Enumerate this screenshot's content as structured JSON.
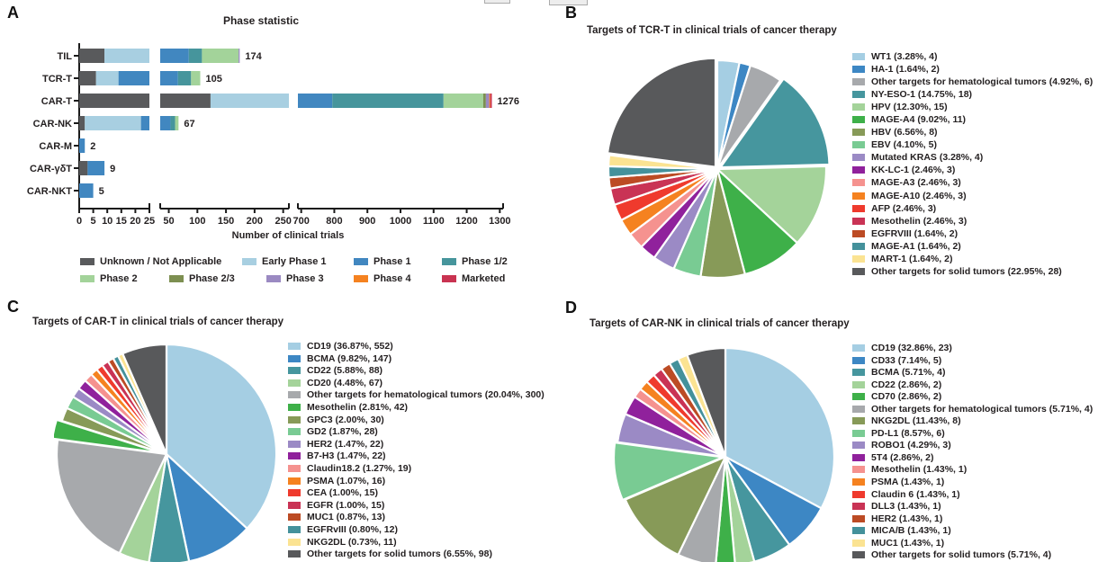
{
  "panels": {
    "a": {
      "letter": "A"
    },
    "b": {
      "letter": "B"
    },
    "c": {
      "letter": "C"
    },
    "d": {
      "letter": "D"
    }
  },
  "chart_data": [
    {
      "type": "bar",
      "panel": "A",
      "orientation": "horizontal_stacked",
      "title": "Phase statistic",
      "xlabel": "Number of clinical trials",
      "categories": [
        "TIL",
        "TCR-T",
        "CAR-T",
        "CAR-NK",
        "CAR-M",
        "CAR-γδT",
        "CAR-NKT"
      ],
      "totals": [
        174,
        105,
        1276,
        67,
        2,
        9,
        5
      ],
      "axis_segments": [
        {
          "range": [
            0,
            25
          ],
          "ticks": [
            0,
            5,
            10,
            15,
            20,
            25
          ]
        },
        {
          "range": [
            35,
            260
          ],
          "ticks": [
            50,
            100,
            150,
            200,
            250
          ]
        },
        {
          "range": [
            690,
            1310
          ],
          "ticks": [
            700,
            800,
            900,
            1000,
            1100,
            1200,
            1300
          ]
        }
      ],
      "series": [
        {
          "name": "Unknown / Not Applicable",
          "color": "#595a5c",
          "values": [
            9,
            6,
            123,
            2,
            0,
            3,
            0
          ]
        },
        {
          "name": "Early Phase 1",
          "color": "#a8cfe1",
          "values": [
            26,
            8,
            157,
            20,
            0,
            0,
            0
          ]
        },
        {
          "name": "Phase 1",
          "color": "#4187c0",
          "values": [
            50,
            52,
            514,
            31,
            2,
            6,
            5
          ]
        },
        {
          "name": "Phase 1/2",
          "color": "#46959c",
          "values": [
            23,
            23,
            336,
            8,
            0,
            0,
            0
          ]
        },
        {
          "name": "Phase 2",
          "color": "#a3d39a",
          "values": [
            64,
            16,
            120,
            6,
            0,
            0,
            0
          ]
        },
        {
          "name": "Phase 2/3",
          "color": "#7d8f51",
          "values": [
            0,
            0,
            8,
            0,
            0,
            0,
            0
          ]
        },
        {
          "name": "Phase 3",
          "color": "#9b8ac2",
          "values": [
            2,
            0,
            10,
            0,
            0,
            0,
            0
          ]
        },
        {
          "name": "Phase 4",
          "color": "#f58220",
          "values": [
            0,
            0,
            3,
            0,
            0,
            0,
            0
          ]
        },
        {
          "name": "Marketed",
          "color": "#c93351",
          "values": [
            0,
            0,
            5,
            0,
            0,
            0,
            0
          ]
        }
      ]
    },
    {
      "type": "pie",
      "panel": "B",
      "title": "Targets of TCR-T in clinical trials of cancer therapy",
      "legend_position": "right",
      "slices": [
        {
          "label": "WT1",
          "pct": "3.28%",
          "count": 4,
          "value": 4,
          "color": "#a5cee3"
        },
        {
          "label": "HA-1",
          "pct": "1.64%",
          "count": 2,
          "value": 2,
          "color": "#3d87c4"
        },
        {
          "label": "Other targets for hematological tumors",
          "pct": "4.92%",
          "count": 6,
          "value": 6,
          "color": "#a7a9ac"
        },
        {
          "label": "NY-ESO-1",
          "pct": "14.75%",
          "count": 18,
          "value": 18,
          "color": "#46969e",
          "explode": 4
        },
        {
          "label": "HPV",
          "pct": "12.30%",
          "count": 15,
          "value": 15,
          "color": "#a4d39a"
        },
        {
          "label": "MAGE-A4",
          "pct": "9.02%",
          "count": 11,
          "value": 11,
          "color": "#3eb049"
        },
        {
          "label": "HBV",
          "pct": "6.56%",
          "count": 8,
          "value": 8,
          "color": "#879a58"
        },
        {
          "label": "EBV",
          "pct": "4.10%",
          "count": 5,
          "value": 5,
          "color": "#79cb93"
        },
        {
          "label": "Mutated KRAS",
          "pct": "3.28%",
          "count": 4,
          "value": 4,
          "color": "#9b8ac5"
        },
        {
          "label": "KK-LC-1",
          "pct": "2.46%",
          "count": 3,
          "value": 3,
          "color": "#90219c"
        },
        {
          "label": "MAGE-A3",
          "pct": "2.46%",
          "count": 3,
          "value": 3,
          "color": "#f5928f"
        },
        {
          "label": "MAGE-A10",
          "pct": "2.46%",
          "count": 3,
          "value": 3,
          "color": "#f58220"
        },
        {
          "label": "AFP",
          "pct": "2.46%",
          "count": 3,
          "value": 3,
          "color": "#ef3a2d"
        },
        {
          "label": "Mesothelin",
          "pct": "2.46%",
          "count": 3,
          "value": 3,
          "color": "#c93355"
        },
        {
          "label": "EGFRVIII",
          "pct": "1.64%",
          "count": 2,
          "value": 2,
          "color": "#bc4b24"
        },
        {
          "label": "MAGE-A1",
          "pct": "1.64%",
          "count": 2,
          "value": 2,
          "color": "#44919b"
        },
        {
          "label": "MART-1",
          "pct": "1.64%",
          "count": 2,
          "value": 2,
          "color": "#fbe392"
        },
        {
          "label": "Other targets for solid tumors",
          "pct": "22.95%",
          "count": 28,
          "value": 28,
          "color": "#58595b",
          "explode": 3
        }
      ]
    },
    {
      "type": "pie",
      "panel": "C",
      "title": "Targets of CAR-T in clinical trials of cancer therapy",
      "legend_position": "right",
      "slices": [
        {
          "label": "CD19",
          "pct": "36.87%",
          "count": 552,
          "value": 552,
          "color": "#a5cee3"
        },
        {
          "label": "BCMA",
          "pct": "9.82%",
          "count": 147,
          "value": 147,
          "color": "#3d87c4"
        },
        {
          "label": "CD22",
          "pct": "5.88%",
          "count": 88,
          "value": 88,
          "color": "#46969e"
        },
        {
          "label": "CD20",
          "pct": "4.48%",
          "count": 67,
          "value": 67,
          "color": "#a4d39a"
        },
        {
          "label": "Other targets for hematological tumors",
          "pct": "20.04%",
          "count": 300,
          "value": 300,
          "color": "#a7a9ac"
        },
        {
          "label": "Mesothelin",
          "pct": "2.81%",
          "count": 42,
          "value": 42,
          "color": "#3eb049",
          "explode": 6
        },
        {
          "label": "GPC3",
          "pct": "2.00%",
          "count": 30,
          "value": 30,
          "color": "#879a58"
        },
        {
          "label": "GD2",
          "pct": "1.87%",
          "count": 28,
          "value": 28,
          "color": "#79cb93"
        },
        {
          "label": "HER2",
          "pct": "1.47%",
          "count": 22,
          "value": 22,
          "color": "#9b8ac5"
        },
        {
          "label": "B7-H3",
          "pct": "1.47%",
          "count": 22,
          "value": 22,
          "color": "#90219c"
        },
        {
          "label": "Claudin18.2",
          "pct": "1.27%",
          "count": 19,
          "value": 19,
          "color": "#f5928f"
        },
        {
          "label": "PSMA",
          "pct": "1.07%",
          "count": 16,
          "value": 16,
          "color": "#f58220"
        },
        {
          "label": "CEA",
          "pct": "1.00%",
          "count": 15,
          "value": 15,
          "color": "#ef3a2d"
        },
        {
          "label": "EGFR",
          "pct": "1.00%",
          "count": 15,
          "value": 15,
          "color": "#c93355"
        },
        {
          "label": "MUC1",
          "pct": "0.87%",
          "count": 13,
          "value": 13,
          "color": "#bc4b24"
        },
        {
          "label": "EGFRvIII",
          "pct": "0.80%",
          "count": 12,
          "value": 12,
          "color": "#44919b"
        },
        {
          "label": "NKG2DL",
          "pct": "0.73%",
          "count": 11,
          "value": 11,
          "color": "#fbe392"
        },
        {
          "label": "Other targets for solid tumors",
          "pct": "6.55%",
          "count": 98,
          "value": 98,
          "color": "#58595b"
        }
      ]
    },
    {
      "type": "pie",
      "panel": "D",
      "title": "Targets of CAR-NK in clinical trials of cancer therapy",
      "legend_position": "right",
      "slices": [
        {
          "label": "CD19",
          "pct": "32.86%",
          "count": 23,
          "value": 23,
          "color": "#a5cee3"
        },
        {
          "label": "CD33",
          "pct": "7.14%",
          "count": 5,
          "value": 5,
          "color": "#3d87c4"
        },
        {
          "label": "BCMA",
          "pct": "5.71%",
          "count": 4,
          "value": 4,
          "color": "#46969e"
        },
        {
          "label": "CD22",
          "pct": "2.86%",
          "count": 2,
          "value": 2,
          "color": "#a4d39a"
        },
        {
          "label": "CD70",
          "pct": "2.86%",
          "count": 2,
          "value": 2,
          "color": "#3eb049"
        },
        {
          "label": "Other targets for hematological tumors",
          "pct": "5.71%",
          "count": 4,
          "value": 4,
          "color": "#a7a9ac"
        },
        {
          "label": "NKG2DL",
          "pct": "11.43%",
          "count": 8,
          "value": 8,
          "color": "#879a58"
        },
        {
          "label": "PD-L1",
          "pct": "8.57%",
          "count": 6,
          "value": 6,
          "color": "#79cb93",
          "explode": 3
        },
        {
          "label": "ROBO1",
          "pct": "4.29%",
          "count": 3,
          "value": 3,
          "color": "#9b8ac5"
        },
        {
          "label": "5T4",
          "pct": "2.86%",
          "count": 2,
          "value": 2,
          "color": "#90219c"
        },
        {
          "label": "Mesothelin",
          "pct": "1.43%",
          "count": 1,
          "value": 1,
          "color": "#f5928f"
        },
        {
          "label": "PSMA",
          "pct": "1.43%",
          "count": 1,
          "value": 1,
          "color": "#f58220"
        },
        {
          "label": "Claudin 6",
          "pct": "1.43%",
          "count": 1,
          "value": 1,
          "color": "#ef3a2d"
        },
        {
          "label": "DLL3",
          "pct": "1.43%",
          "count": 1,
          "value": 1,
          "color": "#c93355"
        },
        {
          "label": "HER2",
          "pct": "1.43%",
          "count": 1,
          "value": 1,
          "color": "#bc4b24"
        },
        {
          "label": "MICA/B",
          "pct": "1.43%",
          "count": 1,
          "value": 1,
          "color": "#44919b"
        },
        {
          "label": "MUC1",
          "pct": "1.43%",
          "count": 1,
          "value": 1,
          "color": "#fbe392"
        },
        {
          "label": "Other targets for solid tumors",
          "pct": "5.71%",
          "count": 4,
          "value": 4,
          "color": "#58595b"
        }
      ]
    }
  ]
}
